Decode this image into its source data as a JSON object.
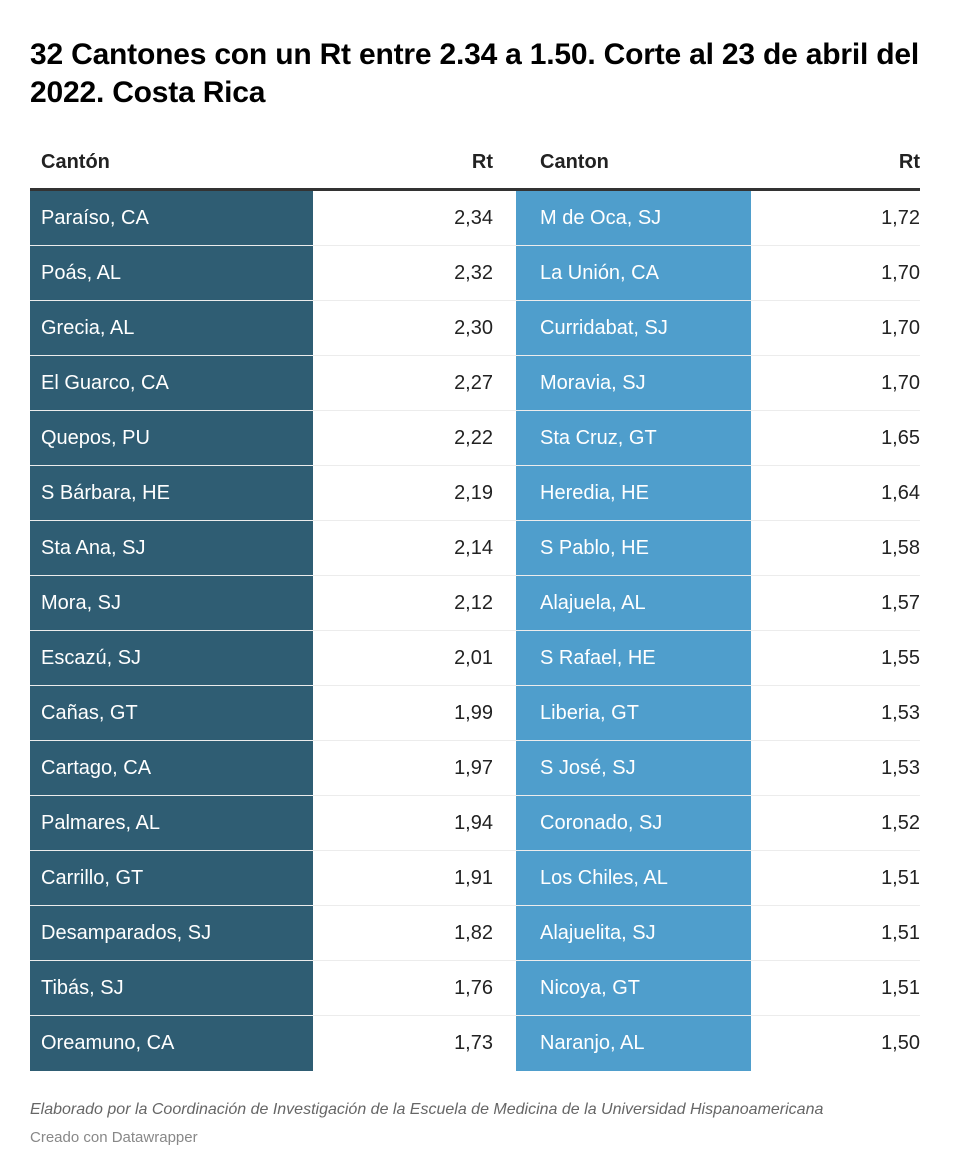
{
  "title": "32 Cantones con un Rt entre 2.34 a 1.50. Corte al 23 de abril del 2022. Costa Rica",
  "colors": {
    "column1_fill": "#2f5d73",
    "column2_fill": "#4f9ecc"
  },
  "chart_data": {
    "type": "table",
    "columns": [
      "Cantón",
      "Rt",
      "Canton",
      "Rt"
    ],
    "rows": [
      [
        "Paraíso, CA",
        "2,34",
        "M de Oca, SJ",
        "1,72"
      ],
      [
        "Poás, AL",
        "2,32",
        "La Unión, CA",
        "1,70"
      ],
      [
        "Grecia, AL",
        "2,30",
        "Curridabat, SJ",
        "1,70"
      ],
      [
        "El Guarco, CA",
        "2,27",
        "Moravia, SJ",
        "1,70"
      ],
      [
        "Quepos, PU",
        "2,22",
        "Sta Cruz, GT",
        "1,65"
      ],
      [
        "S Bárbara, HE",
        "2,19",
        "Heredia, HE",
        "1,64"
      ],
      [
        "Sta Ana, SJ",
        "2,14",
        "S Pablo, HE",
        "1,58"
      ],
      [
        "Mora, SJ",
        "2,12",
        "Alajuela, AL",
        "1,57"
      ],
      [
        "Escazú, SJ",
        "2,01",
        "S Rafael, HE",
        "1,55"
      ],
      [
        "Cañas, GT",
        "1,99",
        "Liberia, GT",
        "1,53"
      ],
      [
        "Cartago, CA",
        "1,97",
        "S José, SJ",
        "1,53"
      ],
      [
        "Palmares, AL",
        "1,94",
        "Coronado, SJ",
        "1,52"
      ],
      [
        "Carrillo, GT",
        "1,91",
        "Los Chiles, AL",
        "1,51"
      ],
      [
        "Desamparados, SJ",
        "1,82",
        "Alajuelita, SJ",
        "1,51"
      ],
      [
        "Tibás, SJ",
        "1,76",
        "Nicoya, GT",
        "1,51"
      ],
      [
        "Oreamuno, CA",
        "1,73",
        "Naranjo, AL",
        "1,50"
      ]
    ]
  },
  "footer": {
    "note": "Elaborado por la Coordinación de Investigación de la Escuela de Medicina de la Universidad Hispanoamericana",
    "credit": "Creado con Datawrapper"
  }
}
